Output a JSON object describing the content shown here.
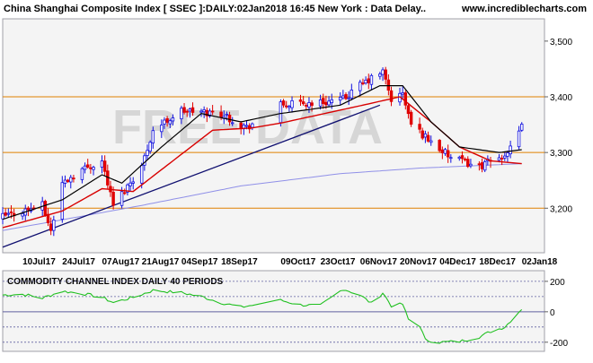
{
  "header": {
    "title": "China Shanghai Composite Index [ SSEC ]:DAILY:02Jan2018 16:45 New York : Data Delay..",
    "site": "www.incrediblecharts.com"
  },
  "watermark": "FREE DATA",
  "indicator": {
    "title": "COMMODITY CHANNEL INDEX DAILY 40 PERIODS"
  },
  "colors": {
    "background": "#ffffff",
    "panel": "#f4f4f4",
    "border": "#a0a0a8",
    "up_candle": "#1010e0",
    "down_candle": "#e00000",
    "fast_ma": "#000000",
    "slow_ma": "#d80000",
    "long_ma": "#9090e8",
    "trendline": "#101070",
    "horizontal_level": "#e08000",
    "cci_line": "#20c020",
    "cci_levels": "#6060a0",
    "text": "#000000"
  },
  "chart_data": [
    {
      "type": "candlestick",
      "title": "China Shanghai Composite Index [ SSEC ]:DAILY:02Jan2018 16:45 New York : Data Delay..",
      "y_range": [
        3120,
        3540
      ],
      "y_ticks": [
        "3,200",
        "3,300",
        "3,400",
        "3,500"
      ],
      "y_tick_values": [
        3200,
        3300,
        3400,
        3500
      ],
      "x_labels": [
        "10Jul17",
        "24Jul17",
        "07Aug17",
        "21Aug17",
        "04Sep17",
        "18Sep17",
        "09Oct17",
        "23Oct17",
        "06Nov17",
        "20Nov17",
        "04Dec17",
        "18Dec17",
        "02Jan18"
      ],
      "x_label_dates": [
        "2017-07-10",
        "2017-07-24",
        "2017-08-07",
        "2017-08-21",
        "2017-09-04",
        "2017-09-18",
        "2017-10-09",
        "2017-10-23",
        "2017-11-06",
        "2017-11-20",
        "2017-12-04",
        "2017-12-18",
        "2018-01-02"
      ],
      "date_range": [
        "2017-07-03",
        "2018-01-10"
      ],
      "horizontal_levels": [
        3200,
        3300,
        3400
      ],
      "trendline": [
        {
          "date": "2017-07-03",
          "value": 3130
        },
        {
          "date": "2017-11-13",
          "value": 3385
        }
      ],
      "ohlc_waypoints": [
        {
          "date": "2017-07-03",
          "close": 3185
        },
        {
          "date": "2017-07-17",
          "close": 3205
        },
        {
          "date": "2017-07-20",
          "close": 3160
        },
        {
          "date": "2017-07-24",
          "close": 3245
        },
        {
          "date": "2017-07-31",
          "close": 3270
        },
        {
          "date": "2017-08-07",
          "close": 3285
        },
        {
          "date": "2017-08-11",
          "close": 3205
        },
        {
          "date": "2017-08-21",
          "close": 3275
        },
        {
          "date": "2017-08-25",
          "close": 3340
        },
        {
          "date": "2017-09-04",
          "close": 3375
        },
        {
          "date": "2017-09-18",
          "close": 3370
        },
        {
          "date": "2017-09-27",
          "close": 3345
        },
        {
          "date": "2017-10-09",
          "close": 3385
        },
        {
          "date": "2017-10-23",
          "close": 3390
        },
        {
          "date": "2017-10-31",
          "close": 3395
        },
        {
          "date": "2017-11-06",
          "close": 3420
        },
        {
          "date": "2017-11-14",
          "close": 3445
        },
        {
          "date": "2017-11-17",
          "close": 3395
        },
        {
          "date": "2017-11-21",
          "close": 3405
        },
        {
          "date": "2017-11-24",
          "close": 3350
        },
        {
          "date": "2017-12-01",
          "close": 3320
        },
        {
          "date": "2017-12-08",
          "close": 3290
        },
        {
          "date": "2017-12-18",
          "close": 3275
        },
        {
          "date": "2017-12-25",
          "close": 3290
        },
        {
          "date": "2017-12-29",
          "close": 3305
        },
        {
          "date": "2018-01-02",
          "close": 3345
        }
      ],
      "moving_average_waypoints": {
        "fast": [
          {
            "date": "2017-07-03",
            "value": 3180
          },
          {
            "date": "2017-07-24",
            "value": 3215
          },
          {
            "date": "2017-08-07",
            "value": 3260
          },
          {
            "date": "2017-08-14",
            "value": 3245
          },
          {
            "date": "2017-08-28",
            "value": 3310
          },
          {
            "date": "2017-09-11",
            "value": 3370
          },
          {
            "date": "2017-09-25",
            "value": 3355
          },
          {
            "date": "2017-10-09",
            "value": 3370
          },
          {
            "date": "2017-10-30",
            "value": 3385
          },
          {
            "date": "2017-11-13",
            "value": 3420
          },
          {
            "date": "2017-11-21",
            "value": 3420
          },
          {
            "date": "2017-12-01",
            "value": 3355
          },
          {
            "date": "2017-12-11",
            "value": 3310
          },
          {
            "date": "2017-12-25",
            "value": 3300
          },
          {
            "date": "2018-01-02",
            "value": 3305
          }
        ],
        "slow": [
          {
            "date": "2017-07-03",
            "value": 3165
          },
          {
            "date": "2017-07-24",
            "value": 3195
          },
          {
            "date": "2017-08-07",
            "value": 3235
          },
          {
            "date": "2017-08-18",
            "value": 3230
          },
          {
            "date": "2017-09-01",
            "value": 3285
          },
          {
            "date": "2017-09-15",
            "value": 3340
          },
          {
            "date": "2017-10-02",
            "value": 3345
          },
          {
            "date": "2017-10-20",
            "value": 3365
          },
          {
            "date": "2017-11-07",
            "value": 3385
          },
          {
            "date": "2017-11-20",
            "value": 3400
          },
          {
            "date": "2017-12-01",
            "value": 3355
          },
          {
            "date": "2017-12-11",
            "value": 3310
          },
          {
            "date": "2017-12-22",
            "value": 3285
          },
          {
            "date": "2018-01-02",
            "value": 3280
          }
        ],
        "long": [
          {
            "date": "2017-07-03",
            "value": 3160
          },
          {
            "date": "2017-08-21",
            "value": 3205
          },
          {
            "date": "2017-09-25",
            "value": 3240
          },
          {
            "date": "2017-10-30",
            "value": 3262
          },
          {
            "date": "2017-11-27",
            "value": 3272
          },
          {
            "date": "2018-01-02",
            "value": 3280
          }
        ]
      }
    },
    {
      "type": "line",
      "title": "COMMODITY CHANNEL INDEX DAILY 40 PERIODS",
      "y_range": [
        -260,
        270
      ],
      "y_ticks": [
        "200",
        "0",
        "-200"
      ],
      "y_tick_values": [
        200,
        0,
        -200
      ],
      "levels": [
        200,
        100,
        0,
        -100,
        -200
      ],
      "series": [
        {
          "values": [
            {
              "date": "2017-07-03",
              "value": 110
            },
            {
              "date": "2017-07-10",
              "value": 115
            },
            {
              "date": "2017-07-17",
              "value": 90
            },
            {
              "date": "2017-07-24",
              "value": 135
            },
            {
              "date": "2017-07-31",
              "value": 120
            },
            {
              "date": "2017-08-07",
              "value": 95
            },
            {
              "date": "2017-08-11",
              "value": 60
            },
            {
              "date": "2017-08-18",
              "value": 95
            },
            {
              "date": "2017-08-25",
              "value": 140
            },
            {
              "date": "2017-09-04",
              "value": 125
            },
            {
              "date": "2017-09-11",
              "value": 100
            },
            {
              "date": "2017-09-18",
              "value": 60
            },
            {
              "date": "2017-09-25",
              "value": 30
            },
            {
              "date": "2017-10-09",
              "value": 75
            },
            {
              "date": "2017-10-16",
              "value": 45
            },
            {
              "date": "2017-10-23",
              "value": 40
            },
            {
              "date": "2017-10-31",
              "value": 150
            },
            {
              "date": "2017-11-06",
              "value": 110
            },
            {
              "date": "2017-11-10",
              "value": 55
            },
            {
              "date": "2017-11-14",
              "value": 125
            },
            {
              "date": "2017-11-17",
              "value": 40
            },
            {
              "date": "2017-11-21",
              "value": 50
            },
            {
              "date": "2017-11-23",
              "value": -50
            },
            {
              "date": "2017-11-27",
              "value": -90
            },
            {
              "date": "2017-11-29",
              "value": -185
            },
            {
              "date": "2017-12-04",
              "value": -200
            },
            {
              "date": "2017-12-11",
              "value": -195
            },
            {
              "date": "2017-12-18",
              "value": -165
            },
            {
              "date": "2017-12-22",
              "value": -130
            },
            {
              "date": "2017-12-27",
              "value": -100
            },
            {
              "date": "2017-12-29",
              "value": -60
            },
            {
              "date": "2018-01-02",
              "value": 20
            }
          ]
        }
      ]
    }
  ]
}
